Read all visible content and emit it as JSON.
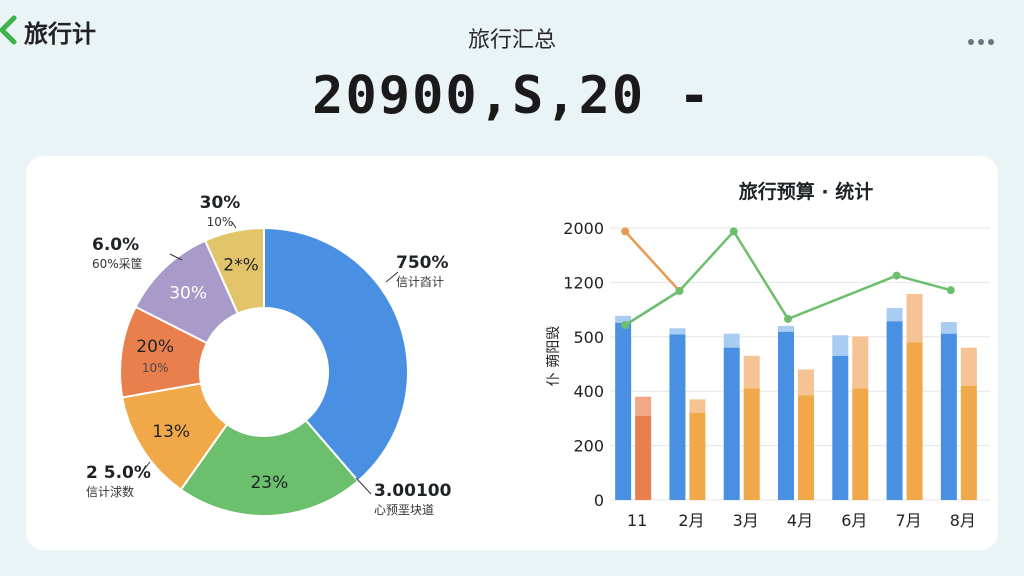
{
  "header": {
    "app_title": "旅行计",
    "page_title": "旅行汇总",
    "total_amount": "20900,S,20 -"
  },
  "icons": {
    "back": "chevron-left-icon",
    "more": "more-dots-icon"
  },
  "colors": {
    "accent_green": "#3cb44b",
    "blue": "#4a90e2",
    "blue_light": "#a9ccf2",
    "orange": "#f0a848",
    "orange_light": "#f6c394",
    "red_orange": "#ea7f4e",
    "purple": "#a89bc9",
    "gold": "#e2c46b",
    "green": "#6cbf6c"
  },
  "chart_data": [
    {
      "type": "pie",
      "donut": true,
      "slices": [
        {
          "value": 37.5,
          "color": "#4a90e2",
          "inner_label": "",
          "outer_value": "750%",
          "outer_sub": "信计㳫计"
        },
        {
          "value": 20.5,
          "color": "#6cbf6c",
          "inner_label": "23%",
          "outer_value": "3.00100",
          "outer_sub": "心预垩块道"
        },
        {
          "value": 12.0,
          "color": "#f0a848",
          "inner_label": "13%",
          "outer_value": "2 5.0%",
          "outer_sub": "信计浗数"
        },
        {
          "value": 10.0,
          "color": "#ea7f4e",
          "inner_label": "20%",
          "inner_sub": "10%",
          "outer_value": "",
          "outer_sub": ""
        },
        {
          "value": 10.5,
          "color": "#a89bc9",
          "inner_label": "30%",
          "outer_value": "6.0%",
          "outer_sub": "60%采筐"
        },
        {
          "value": 6.5,
          "color": "#e2c46b",
          "inner_label": "2*%",
          "outer_value": "30%",
          "outer_sub": "10%"
        }
      ]
    },
    {
      "type": "bar",
      "title": "旅行预算 · 统计",
      "ylabel": "仆 蒴阳毁",
      "categories": [
        "11",
        "2月",
        "3月",
        "4月",
        "6月",
        "7月",
        "8月"
      ],
      "y_ticks": [
        "0",
        "200",
        "400",
        "500",
        "1200",
        "2000"
      ],
      "y_scale": "non-uniform, ticks evenly spaced",
      "series": [
        {
          "values": [
            680,
            530,
            480,
            565,
            465,
            700,
            540
          ],
          "caps": [
            770,
            610,
            540,
            640,
            520,
            870,
            690
          ],
          "color": "#4a90e2",
          "cap_color": "#a9ccf2"
        },
        {
          "values": [
            310,
            320,
            405,
            385,
            405,
            490,
            410
          ],
          "caps": [
            380,
            370,
            465,
            440,
            505,
            1050,
            480
          ],
          "color": "#f0a848",
          "cap_color": "#f6c394"
        }
      ],
      "lines": [
        {
          "color": "#5aa0dc",
          "points": [
            [
              "11",
              650
            ],
            [
              "2月",
              1090
            ]
          ]
        },
        {
          "color": "#e89a52",
          "points": [
            [
              "11",
              1950
            ],
            [
              "2月",
              1090
            ]
          ]
        },
        {
          "color": "#6cbf6c",
          "points": [
            [
              "11",
              650
            ],
            [
              "2月",
              1090
            ],
            [
              "3月",
              1950
            ],
            [
              "4月",
              730
            ],
            [
              "7月",
              1300
            ],
            [
              "8月",
              1100
            ]
          ]
        }
      ]
    }
  ]
}
